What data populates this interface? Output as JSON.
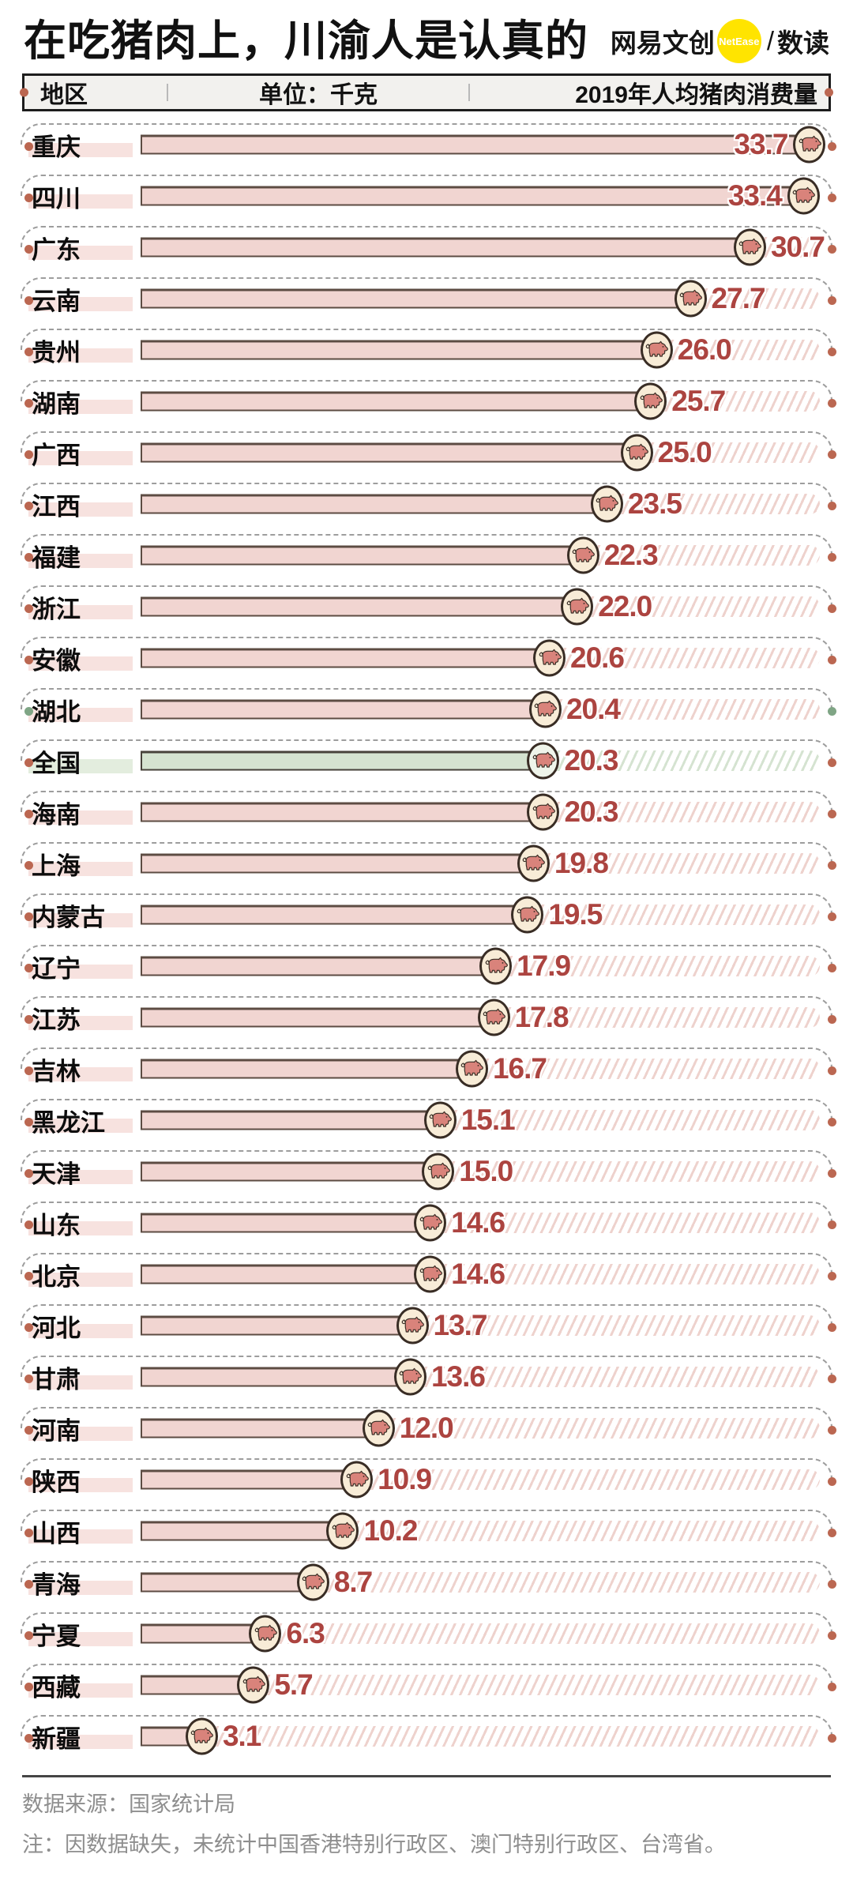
{
  "header": {
    "title": "在吃猪肉上，川渝人是认真的",
    "logo": {
      "brand": "网易文创",
      "badge": "NetEase",
      "separator": "/",
      "product": "数读"
    }
  },
  "table_header": {
    "col_region": "地区",
    "col_unit": "单位：千克",
    "col_value": "2019年人均猪肉消费量"
  },
  "chart_data": {
    "type": "bar",
    "orientation": "horizontal",
    "title": "2019年人均猪肉消费量",
    "unit": "千克",
    "xlim": [
      0,
      34.2
    ],
    "grid": false,
    "highlight_row": "全国",
    "rows": [
      {
        "region": "重庆",
        "value": 33.7,
        "value_label": "33.7",
        "value_inside": true
      },
      {
        "region": "四川",
        "value": 33.4,
        "value_label": "33.4",
        "value_inside": true
      },
      {
        "region": "广东",
        "value": 30.7,
        "value_label": "30.7"
      },
      {
        "region": "云南",
        "value": 27.7,
        "value_label": "27.7"
      },
      {
        "region": "贵州",
        "value": 26.0,
        "value_label": "26.0"
      },
      {
        "region": "湖南",
        "value": 25.7,
        "value_label": "25.7"
      },
      {
        "region": "广西",
        "value": 25.0,
        "value_label": "25.0"
      },
      {
        "region": "江西",
        "value": 23.5,
        "value_label": "23.5"
      },
      {
        "region": "福建",
        "value": 22.3,
        "value_label": "22.3"
      },
      {
        "region": "浙江",
        "value": 22.0,
        "value_label": "22.0"
      },
      {
        "region": "安徽",
        "value": 20.6,
        "value_label": "20.6"
      },
      {
        "region": "湖北",
        "value": 20.4,
        "value_label": "20.4",
        "dot_color": "green"
      },
      {
        "region": "全国",
        "value": 20.3,
        "value_label": "20.3",
        "theme": "green"
      },
      {
        "region": "海南",
        "value": 20.3,
        "value_label": "20.3"
      },
      {
        "region": "上海",
        "value": 19.8,
        "value_label": "19.8"
      },
      {
        "region": "内蒙古",
        "value": 19.5,
        "value_label": "19.5"
      },
      {
        "region": "辽宁",
        "value": 17.9,
        "value_label": "17.9"
      },
      {
        "region": "江苏",
        "value": 17.8,
        "value_label": "17.8"
      },
      {
        "region": "吉林",
        "value": 16.7,
        "value_label": "16.7"
      },
      {
        "region": "黑龙江",
        "value": 15.1,
        "value_label": "15.1"
      },
      {
        "region": "天津",
        "value": 15.0,
        "value_label": "15.0"
      },
      {
        "region": "山东",
        "value": 14.6,
        "value_label": "14.6"
      },
      {
        "region": "北京",
        "value": 14.6,
        "value_label": "14.6"
      },
      {
        "region": "河北",
        "value": 13.7,
        "value_label": "13.7"
      },
      {
        "region": "甘肃",
        "value": 13.6,
        "value_label": "13.6"
      },
      {
        "region": "河南",
        "value": 12.0,
        "value_label": "12.0"
      },
      {
        "region": "陕西",
        "value": 10.9,
        "value_label": "10.9"
      },
      {
        "region": "山西",
        "value": 10.2,
        "value_label": "10.2"
      },
      {
        "region": "青海",
        "value": 8.7,
        "value_label": "8.7"
      },
      {
        "region": "宁夏",
        "value": 6.3,
        "value_label": "6.3"
      },
      {
        "region": "西藏",
        "value": 5.7,
        "value_label": "5.7"
      },
      {
        "region": "新疆",
        "value": 3.1,
        "value_label": "3.1"
      }
    ]
  },
  "footer": {
    "source": "数据来源：国家统计局",
    "note": "注：因数据缺失，未统计中国香港特别行政区、澳门特别行政区、台湾省。"
  },
  "colors": {
    "bar_pink": "#f1d5d1",
    "bar_green": "#d5e3d0",
    "bar_border": "#5d4c43",
    "value_red": "#ac4440",
    "dot_red": "#bb6751",
    "dot_green": "#7fa585",
    "pig_fill": "#d9837b",
    "pig_circle_cream": "#f8ecd7",
    "logo_yellow": "#ffe400",
    "label_band_pink": "#f7e2df",
    "label_band_green": "#e3edde"
  }
}
